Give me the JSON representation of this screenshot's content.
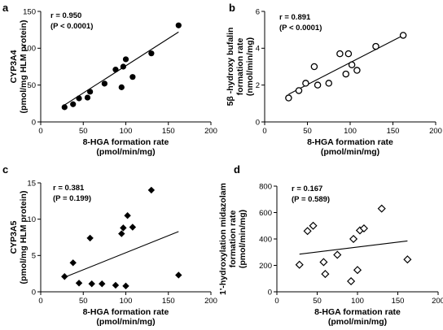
{
  "chart_data": [
    {
      "type": "scatter",
      "panel_label": "a",
      "marker": "filled-circle",
      "xlabel": "8-HGA formation rate\n(pmol/min/mg)",
      "ylabel": "CYP3A4\n(pmol/mg HLM protein)",
      "xlim": [
        0,
        200
      ],
      "ylim": [
        0,
        150
      ],
      "xticks": [
        0,
        50,
        100,
        150,
        200
      ],
      "yticks": [
        0,
        50,
        100,
        150
      ],
      "annotation": [
        "r = 0.950",
        "(P < 0.0001)"
      ],
      "x": [
        28,
        38,
        45,
        55,
        58,
        75,
        88,
        95,
        97,
        100,
        108,
        130,
        162
      ],
      "y": [
        20,
        24,
        32,
        33,
        41,
        52,
        71,
        47,
        75,
        85,
        61,
        93,
        131
      ],
      "fit": {
        "x": [
          28,
          162
        ],
        "y": [
          23,
          122
        ]
      }
    },
    {
      "type": "scatter",
      "panel_label": "b",
      "marker": "open-circle",
      "xlabel": "8-HGA formation rate\n(pmol/min/mg)",
      "ylabel": "5β -hydroxy bufalin\nformation rate\n(nmol/min/mg)",
      "xlim": [
        0,
        200
      ],
      "ylim": [
        0,
        6
      ],
      "xticks": [
        0,
        50,
        100,
        150,
        200
      ],
      "yticks": [
        0,
        2,
        4,
        6
      ],
      "annotation": [
        "r = 0.891",
        "(P < 0.0001)"
      ],
      "x": [
        28,
        40,
        48,
        58,
        62,
        75,
        88,
        95,
        98,
        102,
        108,
        130,
        162
      ],
      "y": [
        1.3,
        1.7,
        2.1,
        3.0,
        2.0,
        2.1,
        3.7,
        2.6,
        3.7,
        3.1,
        2.8,
        4.1,
        4.7
      ],
      "fit": {
        "x": [
          28,
          162
        ],
        "y": [
          1.5,
          4.7
        ]
      }
    },
    {
      "type": "scatter",
      "panel_label": "c",
      "marker": "filled-diamond",
      "xlabel": "8-HGA formation rate\n(pmol/min/mg)",
      "ylabel": "CYP3A5\n(pmol/mg HLM protein)",
      "xlim": [
        0,
        200
      ],
      "ylim": [
        0,
        15
      ],
      "xticks": [
        0,
        50,
        100,
        150,
        200
      ],
      "yticks": [
        0,
        5,
        10,
        15
      ],
      "annotation": [
        "r = 0.381",
        "(P = 0.199)"
      ],
      "x": [
        28,
        38,
        45,
        58,
        60,
        72,
        88,
        95,
        97,
        100,
        102,
        108,
        130,
        162
      ],
      "y": [
        2.1,
        4.0,
        1.2,
        7.4,
        1.1,
        1.1,
        0.9,
        8.0,
        8.8,
        0.8,
        10.5,
        8.9,
        14.0,
        2.3
      ],
      "fit": {
        "x": [
          28,
          162
        ],
        "y": [
          2.0,
          8.3
        ]
      }
    },
    {
      "type": "scatter",
      "panel_label": "d",
      "marker": "open-diamond",
      "xlabel": "8-HGA formation rate\n(pmol/min/mg)",
      "ylabel": "1'-hydroxylation midazolam\nformation rate\n(pmol/min/mg)",
      "xlim": [
        0,
        200
      ],
      "ylim": [
        0,
        800
      ],
      "xticks": [
        0,
        50,
        100,
        150,
        200
      ],
      "yticks": [
        0,
        200,
        400,
        600,
        800
      ],
      "annotation": [
        "r = 0.167",
        "(P = 0.589)"
      ],
      "x": [
        28,
        38,
        45,
        58,
        60,
        75,
        92,
        95,
        100,
        103,
        108,
        130,
        162
      ],
      "y": [
        205,
        460,
        500,
        225,
        135,
        280,
        80,
        400,
        165,
        465,
        480,
        630,
        245
      ],
      "fit": {
        "x": [
          28,
          162
        ],
        "y": [
          285,
          385
        ]
      }
    }
  ]
}
